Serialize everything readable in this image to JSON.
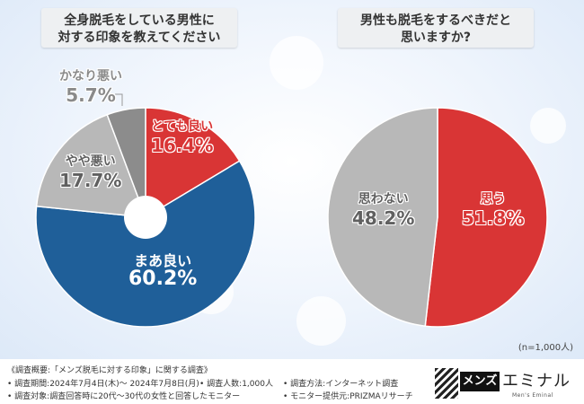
{
  "titles": {
    "left_line1": "全身脱毛をしている男性に",
    "left_line2": "対する印象を教えてください",
    "right_line1": "男性も脱毛をするべきだと",
    "right_line2": "思いますか?"
  },
  "chart_data": [
    {
      "type": "pie",
      "title": "全身脱毛をしている男性に対する印象を教えてください",
      "donut": true,
      "categories": [
        "とても良い",
        "まあ良い",
        "やや悪い",
        "かなり悪い"
      ],
      "values": [
        16.4,
        60.2,
        17.7,
        5.7
      ],
      "value_labels": [
        "16.4%",
        "60.2%",
        "17.7%",
        "5.7%"
      ],
      "colors": [
        "#d93535",
        "#1f5f99",
        "#b8b8b8",
        "#8c8c8c"
      ]
    },
    {
      "type": "pie",
      "title": "男性も脱毛をするべきだと思いますか?",
      "donut": false,
      "categories": [
        "思う",
        "思わない"
      ],
      "values": [
        51.8,
        48.2
      ],
      "value_labels": [
        "51.8%",
        "48.2%"
      ],
      "colors": [
        "#d93535",
        "#b8b8b8"
      ]
    }
  ],
  "note": "(n=1,000人)",
  "footer": {
    "line1": "《調査概要:「メンズ脱毛に対する印象」に関する調査》",
    "period": "• 調査期間:2024年7月4日(木)〜 2024年7月8日(月)",
    "count": "• 調査人数:1,000人",
    "method": "• 調査方法:インターネット調査",
    "target": "• 調査対象:調査回答時に20代〜30代の女性と回答したモニター",
    "provider": "• モニター提供元:PRIZMAリサーチ"
  },
  "logo": {
    "black": "メンズ",
    "text": "エミナル",
    "sub": "Men's Eminal"
  }
}
